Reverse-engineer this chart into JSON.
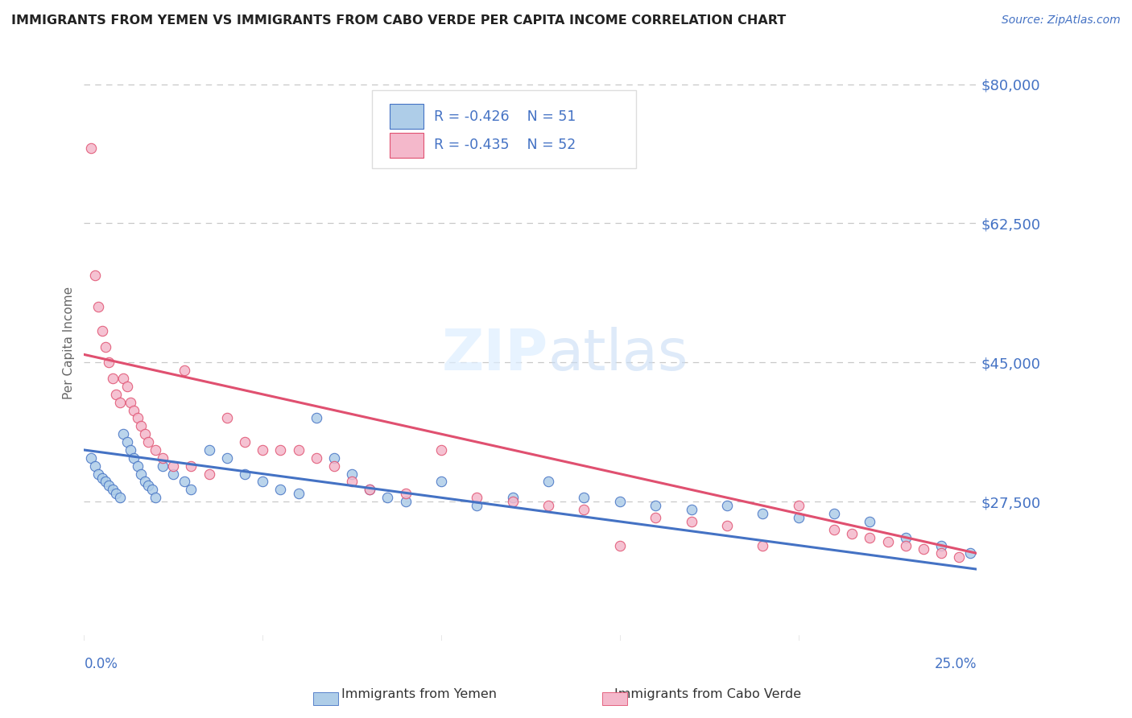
{
  "title": "IMMIGRANTS FROM YEMEN VS IMMIGRANTS FROM CABO VERDE PER CAPITA INCOME CORRELATION CHART",
  "source": "Source: ZipAtlas.com",
  "ylabel": "Per Capita Income",
  "xmin": 0.0,
  "xmax": 0.25,
  "ymin": 10000,
  "ymax": 85000,
  "yemen_R": -0.426,
  "yemen_N": 51,
  "caboverde_R": -0.435,
  "caboverde_N": 52,
  "legend_label_1": "Immigrants from Yemen",
  "legend_label_2": "Immigrants from Cabo Verde",
  "yemen_color": "#aecde8",
  "caboverde_color": "#f4b8cb",
  "yemen_line_color": "#4472c4",
  "caboverde_line_color": "#e05070",
  "grid_color": "#c8c8c8",
  "title_color": "#222222",
  "axis_label_color": "#4472c4",
  "ytick_vals": [
    27500,
    45000,
    62500,
    80000
  ],
  "ytick_labels": [
    "$27,500",
    "$45,000",
    "$62,500",
    "$80,000"
  ],
  "yemen_intercept": 34000,
  "yemen_slope": -60000,
  "caboverde_intercept": 46000,
  "caboverde_slope": -100000,
  "yemen_x": [
    0.002,
    0.003,
    0.004,
    0.005,
    0.006,
    0.007,
    0.008,
    0.009,
    0.01,
    0.011,
    0.012,
    0.013,
    0.014,
    0.015,
    0.016,
    0.017,
    0.018,
    0.019,
    0.02,
    0.022,
    0.025,
    0.028,
    0.03,
    0.035,
    0.04,
    0.045,
    0.05,
    0.055,
    0.06,
    0.065,
    0.07,
    0.075,
    0.08,
    0.085,
    0.09,
    0.1,
    0.11,
    0.12,
    0.13,
    0.14,
    0.15,
    0.16,
    0.17,
    0.18,
    0.19,
    0.2,
    0.21,
    0.22,
    0.23,
    0.24,
    0.248
  ],
  "yemen_y": [
    33000,
    32000,
    31000,
    30500,
    30000,
    29500,
    29000,
    28500,
    28000,
    36000,
    35000,
    34000,
    33000,
    32000,
    31000,
    30000,
    29500,
    29000,
    28000,
    32000,
    31000,
    30000,
    29000,
    34000,
    33000,
    31000,
    30000,
    29000,
    28500,
    38000,
    33000,
    31000,
    29000,
    28000,
    27500,
    30000,
    27000,
    28000,
    30000,
    28000,
    27500,
    27000,
    26500,
    27000,
    26000,
    25500,
    26000,
    25000,
    23000,
    22000,
    21000
  ],
  "caboverde_x": [
    0.002,
    0.003,
    0.004,
    0.005,
    0.006,
    0.007,
    0.008,
    0.009,
    0.01,
    0.011,
    0.012,
    0.013,
    0.014,
    0.015,
    0.016,
    0.017,
    0.018,
    0.02,
    0.022,
    0.025,
    0.028,
    0.03,
    0.035,
    0.04,
    0.045,
    0.05,
    0.055,
    0.06,
    0.065,
    0.07,
    0.075,
    0.08,
    0.09,
    0.1,
    0.11,
    0.12,
    0.13,
    0.14,
    0.15,
    0.16,
    0.17,
    0.18,
    0.19,
    0.2,
    0.21,
    0.215,
    0.22,
    0.225,
    0.23,
    0.235,
    0.24,
    0.245
  ],
  "caboverde_y": [
    72000,
    56000,
    52000,
    49000,
    47000,
    45000,
    43000,
    41000,
    40000,
    43000,
    42000,
    40000,
    39000,
    38000,
    37000,
    36000,
    35000,
    34000,
    33000,
    32000,
    44000,
    32000,
    31000,
    38000,
    35000,
    34000,
    34000,
    34000,
    33000,
    32000,
    30000,
    29000,
    28500,
    34000,
    28000,
    27500,
    27000,
    26500,
    22000,
    25500,
    25000,
    24500,
    22000,
    27000,
    24000,
    23500,
    23000,
    22500,
    22000,
    21500,
    21000,
    20500
  ]
}
